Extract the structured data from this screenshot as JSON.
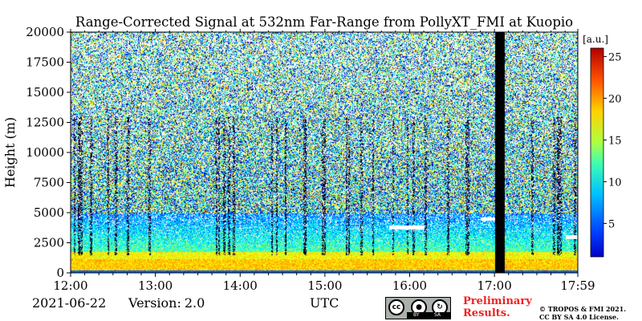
{
  "chart_data": {
    "type": "heatmap",
    "title": "Range-Corrected Signal at 532nm Far-Range from PollyXT_FMI at Kuopio",
    "ylabel": "Height (m)",
    "xlabel": "UTC",
    "x_ticks": [
      "12:00",
      "13:00",
      "14:00",
      "15:00",
      "16:00",
      "17:00",
      "17:59"
    ],
    "y_ticks": [
      0,
      2500,
      5000,
      7500,
      10000,
      12500,
      15000,
      17500,
      20000
    ],
    "xlim": [
      "12:00",
      "17:59"
    ],
    "ylim": [
      0,
      20000
    ],
    "colorbar": {
      "unit": "[a.u.]",
      "ticks": [
        5,
        10,
        15,
        20,
        25
      ],
      "range": [
        1,
        26
      ],
      "colormap": "jet"
    },
    "features": {
      "data_gap": [
        "17:00",
        "17:07"
      ],
      "boundary_layer_top_m": 1800,
      "aerosol_layer_top_m": 5000,
      "cloud_layers": [
        {
          "start": "15:45",
          "end": "16:10",
          "height_m": 3800
        },
        {
          "start": "16:50",
          "end": "17:05",
          "height_m": 4500
        },
        {
          "start": "17:50",
          "end": "17:59",
          "height_m": 3000
        }
      ]
    }
  },
  "footer": {
    "date": "2021-06-22",
    "version_label": "Version:",
    "version_value": "2.0",
    "axis_unit": "UTC",
    "preliminary_line1": "Preliminary",
    "preliminary_line2": "Results.",
    "copyright_line1": "© TROPOS & FMI 2021.",
    "copyright_line2": "CC BY SA 4.0 License."
  },
  "license_badge": {
    "cc": "cc",
    "by": "BY",
    "sa": "SA"
  }
}
